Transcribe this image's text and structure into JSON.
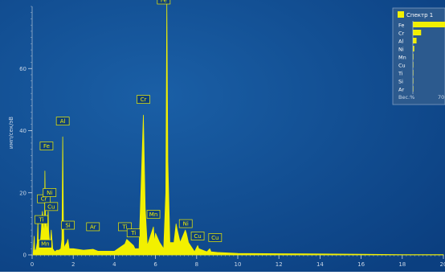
{
  "chart_data": {
    "type": "line",
    "title": "",
    "ylabel": "имп/сек/эВ",
    "xlabel": "",
    "xlim": [
      0,
      20
    ],
    "ylim": [
      0,
      80
    ],
    "x_ticks": [
      0,
      2,
      4,
      6,
      8,
      10,
      12,
      14,
      16,
      18,
      20
    ],
    "y_ticks": [
      0,
      20,
      40,
      60
    ],
    "grid": false,
    "series": [
      {
        "x": [
          0.05,
          0.1,
          0.12,
          0.15,
          0.2,
          0.25,
          0.28,
          0.3,
          0.35,
          0.4,
          0.45,
          0.5,
          0.55,
          0.6,
          0.62,
          0.65,
          0.7,
          0.72,
          0.75,
          0.78,
          0.8,
          0.85,
          0.9,
          0.93,
          1.0,
          1.1,
          1.2,
          1.3,
          1.4,
          1.45,
          1.49,
          1.52,
          1.55,
          1.6,
          1.7,
          1.74,
          1.8,
          2.0,
          2.5,
          2.96,
          3.2,
          4.0,
          4.51,
          4.6,
          4.93,
          5.0,
          5.2,
          5.41,
          5.5,
          5.6,
          5.9,
          5.95,
          6.0,
          6.2,
          6.4,
          6.5,
          6.55,
          6.6,
          6.7,
          6.9,
          7.0,
          7.06,
          7.2,
          7.45,
          7.5,
          7.6,
          7.9,
          8.05,
          8.1,
          8.5,
          8.64,
          8.7,
          9.0,
          10.0,
          12.0,
          14.0,
          16.0,
          18.0,
          20.0
        ],
        "y": [
          0.5,
          6,
          2,
          1,
          2,
          4,
          11,
          3,
          2,
          4,
          8,
          14,
          10,
          6,
          27,
          12,
          9,
          6,
          11,
          14,
          8,
          4,
          4,
          8,
          2,
          1,
          1.5,
          1.5,
          2,
          5,
          38,
          12,
          2,
          3,
          4,
          5,
          2,
          2,
          1.5,
          1.8,
          1.2,
          1.2,
          3.5,
          5,
          3,
          2,
          2,
          45,
          15,
          3,
          9,
          4,
          7,
          4,
          2,
          20,
          81,
          30,
          4,
          4,
          10,
          8,
          4,
          8,
          7,
          4,
          1,
          3,
          2,
          1,
          2,
          1,
          0.8,
          0.5,
          0.4,
          0.3,
          0.2,
          0.1,
          0.1
        ]
      }
    ],
    "peak_labels": [
      {
        "text": "Fe",
        "x": 6.4,
        "y": 80
      },
      {
        "text": "Cr",
        "x": 5.41,
        "y": 48
      },
      {
        "text": "Al",
        "x": 1.49,
        "y": 41
      },
      {
        "text": "Fe",
        "x": 0.7,
        "y": 33
      },
      {
        "text": "Cr",
        "x": 0.57,
        "y": 16
      },
      {
        "text": "Ni",
        "x": 0.85,
        "y": 18
      },
      {
        "text": "Cu",
        "x": 0.93,
        "y": 13.5
      },
      {
        "text": "Ti",
        "x": 0.45,
        "y": 9.3
      },
      {
        "text": "Mn",
        "x": 0.64,
        "y": 1.5
      },
      {
        "text": "Si",
        "x": 1.74,
        "y": 7.5
      },
      {
        "text": "Ar",
        "x": 2.96,
        "y": 7
      },
      {
        "text": "Ti",
        "x": 4.51,
        "y": 7
      },
      {
        "text": "Ti",
        "x": 4.93,
        "y": 5
      },
      {
        "text": "Mn",
        "x": 5.9,
        "y": 11
      },
      {
        "text": "Ni",
        "x": 7.47,
        "y": 8
      },
      {
        "text": "Cu",
        "x": 8.05,
        "y": 4
      },
      {
        "text": "Cu",
        "x": 8.9,
        "y": 3.5
      }
    ],
    "inset": {
      "title": "Спектр 1",
      "elements": [
        "Fe",
        "Cr",
        "Al",
        "Ni",
        "Mn",
        "Cu",
        "Ti",
        "Si",
        "Ar"
      ],
      "values": [
        70,
        18,
        8,
        3,
        1.2,
        0.5,
        0.3,
        0.3,
        0.1
      ],
      "axis_label": "Вес.%",
      "axis_max": 70,
      "axis_max_label": "70"
    },
    "colors": {
      "background": "#0b3f80",
      "spectrum": "#f2f000",
      "text": "#c9d6e6"
    }
  }
}
